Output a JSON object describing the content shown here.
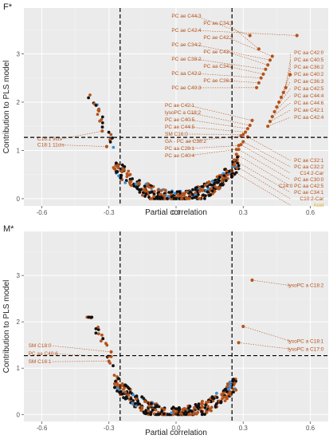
{
  "chart_data": [
    {
      "type": "scatter",
      "panel_label": "F*",
      "xlabel": "Partial correlation",
      "ylabel": "Contribution to PLS model",
      "xlim": [
        -0.68,
        0.68
      ],
      "ylim": [
        -0.15,
        3.95
      ],
      "x_ticks": [
        -0.6,
        -0.3,
        0.0,
        0.3,
        0.6
      ],
      "x_tick_labels": [
        "-0.6",
        "-0.3",
        "0.0",
        "0.3",
        "0.6"
      ],
      "y_ticks": [
        0,
        1,
        2,
        3
      ],
      "y_tick_labels": [
        "0",
        "1",
        "2",
        "3"
      ],
      "grid": true,
      "reference_lines": {
        "x": [
          -0.25,
          0.25
        ],
        "y": [
          1.27
        ]
      },
      "point_colors": {
        "acylcarnitine": "#111111",
        "phosphatidylcholine": "#b5541c",
        "other": "#3a8fd6"
      },
      "labeled_points": [
        {
          "label": "PC ae C44:3",
          "x": 0.33,
          "y": 3.38
        },
        {
          "label": "PC ae C34:3",
          "x": 0.37,
          "y": 3.1
        },
        {
          "label": "PC ae C42:4",
          "x": 0.54,
          "y": 3.38
        },
        {
          "label": "PC ae C42:3",
          "x": 0.43,
          "y": 2.95
        },
        {
          "label": "PC ae C34:2",
          "x": 0.42,
          "y": 2.87
        },
        {
          "label": "PC ae C42:2",
          "x": 0.41,
          "y": 2.77
        },
        {
          "label": "PC ae C38:2",
          "x": 0.4,
          "y": 2.68
        },
        {
          "label": "PC aa C34:2",
          "x": 0.39,
          "y": 2.58
        },
        {
          "label": "PC aa C42:2",
          "x": 0.38,
          "y": 2.5
        },
        {
          "label": "PC ae C36:2",
          "x": 0.37,
          "y": 2.4
        },
        {
          "label": "PC ae C40:3",
          "x": 0.36,
          "y": 2.3
        },
        {
          "label": "PC aa C42:0",
          "x": 0.51,
          "y": 2.57
        },
        {
          "label": "PC ae C40:5",
          "x": 0.49,
          "y": 2.3
        },
        {
          "label": "PC ae C36:2",
          "x": 0.48,
          "y": 2.2
        },
        {
          "label": "PC ae C40:2",
          "x": 0.47,
          "y": 2.1
        },
        {
          "label": "PC ae C36:3",
          "x": 0.46,
          "y": 2.0
        },
        {
          "label": "PC aa C42:5",
          "x": 0.45,
          "y": 1.9
        },
        {
          "label": "PC ae C44:4",
          "x": 0.44,
          "y": 1.8
        },
        {
          "label": "PC ae C44:6",
          "x": 0.43,
          "y": 1.7
        },
        {
          "label": "PC ae C42:1",
          "x": 0.42,
          "y": 1.6
        },
        {
          "label": "PC aa C42:4",
          "x": 0.41,
          "y": 1.5
        },
        {
          "label": "PC ae C42:1",
          "x": 0.34,
          "y": 1.62
        },
        {
          "label": "lysoPC a C18:2",
          "x": 0.33,
          "y": 1.52
        },
        {
          "label": "PC ae C40:5",
          "x": 0.32,
          "y": 1.45
        },
        {
          "label": "PC ae C44:5",
          "x": 0.31,
          "y": 1.38
        },
        {
          "label": "SM C16:0",
          "x": 0.3,
          "y": 1.33
        },
        {
          "label": "GA - PC ae C38:2",
          "x": 0.29,
          "y": 1.3
        },
        {
          "label": "PC aa C28:1",
          "x": 0.28,
          "y": 1.1
        },
        {
          "label": "PC ae C40:4",
          "x": 0.27,
          "y": 1.02
        },
        {
          "label": "C16:1 9cis",
          "x": -0.33,
          "y": 1.4
        },
        {
          "label": "C18:1 11cis",
          "x": -0.31,
          "y": 1.08
        },
        {
          "label": "PC ae C32:1",
          "x": 0.32,
          "y": 1.28
        },
        {
          "label": "PC aa C32:2",
          "x": 0.3,
          "y": 1.18
        },
        {
          "label": "C14:2-Car",
          "x": 0.29,
          "y": 1.12
        },
        {
          "label": "PC ae C30:0",
          "x": 0.28,
          "y": 1.02
        },
        {
          "label": "C24:0 PC aa C42:5",
          "x": 0.27,
          "y": 0.92
        },
        {
          "label": "PC ae C34:1",
          "x": 0.26,
          "y": 0.8
        },
        {
          "label": "C10:2-Car",
          "x": 0.26,
          "y": 0.7
        },
        {
          "label": "Acet",
          "x": 0.25,
          "y": 0.58
        }
      ],
      "seed": 11
    },
    {
      "type": "scatter",
      "panel_label": "M*",
      "xlabel": "Partial correlation",
      "ylabel": "Contribution to PLS model",
      "xlim": [
        -0.68,
        0.68
      ],
      "ylim": [
        -0.15,
        3.95
      ],
      "x_ticks": [
        -0.6,
        -0.3,
        0.0,
        0.3,
        0.6
      ],
      "x_tick_labels": [
        "-0.6",
        "-0.3",
        "0.0",
        "0.3",
        "0.6"
      ],
      "y_ticks": [
        0,
        1,
        2,
        3
      ],
      "y_tick_labels": [
        "0",
        "1",
        "2",
        "3"
      ],
      "grid": true,
      "reference_lines": {
        "x": [
          -0.25,
          0.25
        ],
        "y": [
          1.27
        ]
      },
      "point_colors": {
        "acylcarnitine": "#111111",
        "phosphatidylcholine": "#b5541c",
        "other": "#3a8fd6"
      },
      "labeled_points": [
        {
          "label": "lysoPC a C18:2",
          "x": 0.34,
          "y": 2.9
        },
        {
          "label": "lysoPC a C18:1",
          "x": 0.3,
          "y": 1.9
        },
        {
          "label": "lysoPC a C17:0",
          "x": 0.28,
          "y": 1.55
        },
        {
          "label": "SM C18:0",
          "x": -0.29,
          "y": 1.35
        },
        {
          "label": "PC aa C40:6",
          "x": -0.29,
          "y": 1.25
        },
        {
          "label": "SM C16:1",
          "x": -0.3,
          "y": 1.15
        }
      ],
      "seed": 29
    }
  ]
}
